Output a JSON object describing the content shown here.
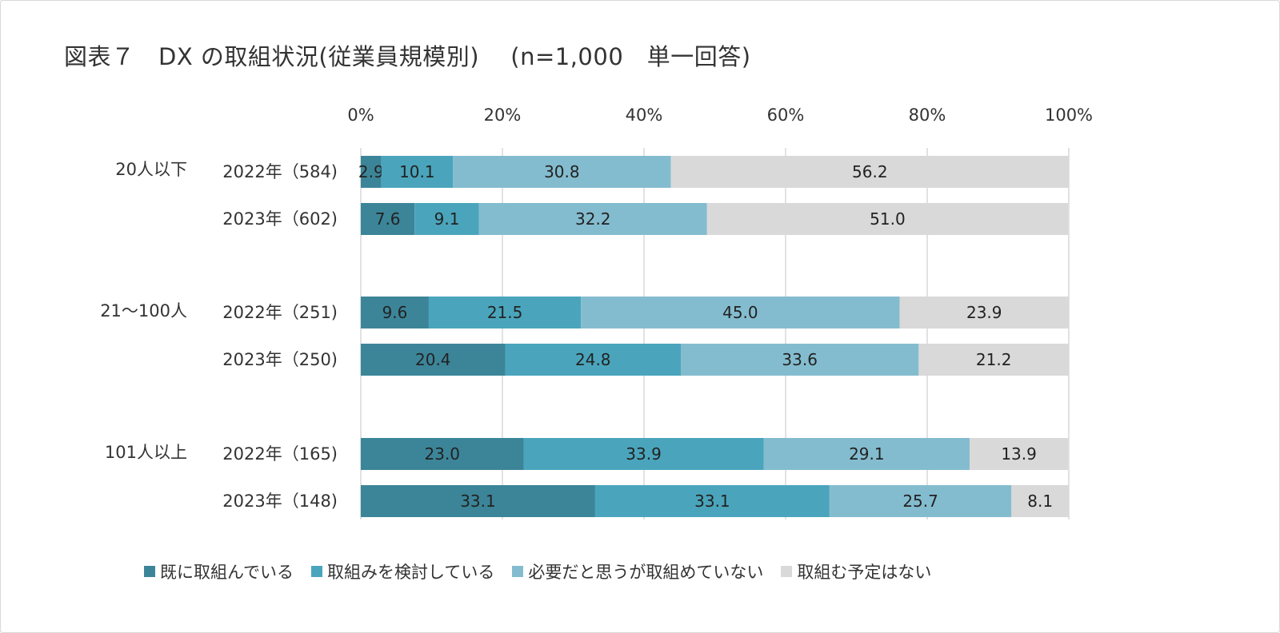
{
  "title": "図表７　DX の取組状況(従業員規模別)　 (n=1,000　単一回答)",
  "colors": [
    "#3c8599",
    "#4aa5bc",
    "#84bccf",
    "#d9d9d9"
  ],
  "chart_data": {
    "type": "bar",
    "orientation": "horizontal",
    "stacked": true,
    "percent": true,
    "xlim": [
      0,
      100
    ],
    "x_ticks": [
      "0%",
      "20%",
      "40%",
      "60%",
      "80%",
      "100%"
    ],
    "grid": true,
    "legend_position": "bottom",
    "groups": [
      "20人以下",
      "21～100人",
      "101人以上"
    ],
    "categories": [
      "2022年（584)",
      "2023年（602)",
      "2022年（251)",
      "2023年（250)",
      "2022年（165)",
      "2023年（148)"
    ],
    "series": [
      {
        "name": "既に取組んでいる",
        "values": [
          2.9,
          7.6,
          9.6,
          20.4,
          23.0,
          33.1
        ],
        "labels": [
          "2.9",
          "7.6",
          "9.6",
          "20.4",
          "23.0",
          "33.1"
        ]
      },
      {
        "name": "取組みを検討している",
        "values": [
          10.1,
          9.1,
          21.5,
          24.8,
          33.9,
          33.1
        ],
        "labels": [
          "10.1",
          "9.1",
          "21.5",
          "24.8",
          "33.9",
          "33.1"
        ]
      },
      {
        "name": "必要だと思うが取組めていない",
        "values": [
          30.8,
          32.2,
          45.0,
          33.6,
          29.1,
          25.7
        ],
        "labels": [
          "30.8",
          "32.2",
          "45.0",
          "33.6",
          "29.1",
          "25.7"
        ]
      },
      {
        "name": "取組む予定はない",
        "values": [
          56.2,
          51.0,
          23.9,
          21.2,
          13.9,
          8.1
        ],
        "labels": [
          "56.2",
          "51.0",
          "23.9",
          "21.2",
          "13.9",
          "8.1"
        ]
      }
    ]
  }
}
